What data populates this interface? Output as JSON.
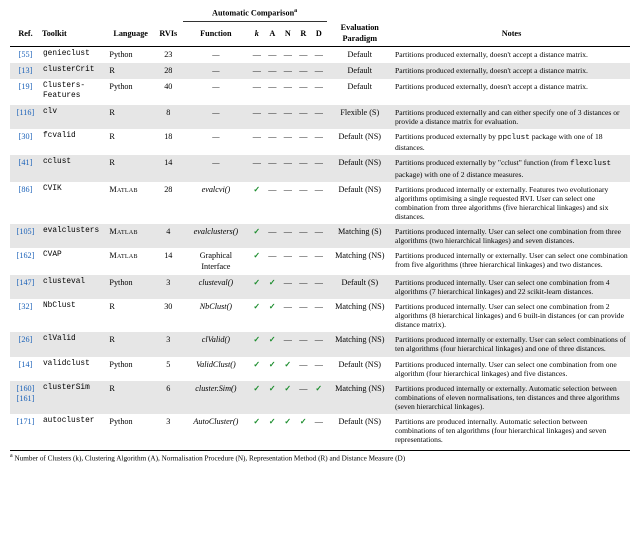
{
  "header": {
    "group_label": "Automatic Comparison",
    "group_sup": "a",
    "cols": {
      "ref": "Ref.",
      "toolkit": "Toolkit",
      "language": "Language",
      "rvis": "RVIs",
      "function": "Function",
      "k": "k",
      "a": "A",
      "n": "N",
      "r": "R",
      "d": "D",
      "ep": "Evaluation Paradigm",
      "notes": "Notes"
    }
  },
  "col_widths": {
    "ref": 28,
    "toolkit": 60,
    "language": 42,
    "rvis": 26,
    "function": 60,
    "k": 14,
    "a": 14,
    "n": 14,
    "r": 14,
    "d": 14,
    "ep": 60,
    "notes": 214
  },
  "checkmark": "✓",
  "dash": "—",
  "colors": {
    "ref": "#1a61b8",
    "check": "#1a8c2c",
    "alt_row": "#e6e6e6",
    "rule": "#000000",
    "bg": "#ffffff"
  },
  "fonts": {
    "body_pt": 8.2,
    "notes_pt": 7.6,
    "footnote_pt": 7.2,
    "mono": "Courier New",
    "serif": "Georgia"
  },
  "rows": [
    {
      "ref": "[55]",
      "toolkit": "genieclust",
      "language": "Python",
      "rvis": "23",
      "function": "—",
      "k": "—",
      "a": "—",
      "n": "—",
      "r": "—",
      "d": "—",
      "ep": "Default",
      "notes": "Partitions produced externally, doesn't accept a distance matrix."
    },
    {
      "ref": "[13]",
      "toolkit": "clusterCrit",
      "language": "R",
      "rvis": "28",
      "function": "—",
      "k": "—",
      "a": "—",
      "n": "—",
      "r": "—",
      "d": "—",
      "ep": "Default",
      "notes": "Partitions produced externally, doesn't accept a distance matrix."
    },
    {
      "ref": "[19]",
      "toolkit": "Clusters-Features",
      "language": "Python",
      "rvis": "40",
      "function": "—",
      "k": "—",
      "a": "—",
      "n": "—",
      "r": "—",
      "d": "—",
      "ep": "Default",
      "notes": "Partitions produced externally, doesn't accept a distance matrix."
    },
    {
      "ref": "[116]",
      "toolkit": "clv",
      "language": "R",
      "rvis": "8",
      "function": "—",
      "k": "—",
      "a": "—",
      "n": "—",
      "r": "—",
      "d": "—",
      "ep": "Flexible (S)",
      "notes": "Partitions produced externally and can either specify one of 3 distances or provide a distance matrix for evaluation."
    },
    {
      "ref": "[30]",
      "toolkit": "fcvalid",
      "language": "R",
      "rvis": "18",
      "function": "—",
      "k": "—",
      "a": "—",
      "n": "—",
      "r": "—",
      "d": "—",
      "ep": "Default (NS)",
      "notes": "Partitions produced externally by ppclust package with one of 18 distances.",
      "notes_tt": [
        "ppclust"
      ]
    },
    {
      "ref": "[41]",
      "toolkit": "cclust",
      "language": "R",
      "rvis": "14",
      "function": "—",
      "k": "—",
      "a": "—",
      "n": "—",
      "r": "—",
      "d": "—",
      "ep": "Default (NS)",
      "notes": "Partitions produced externally by \"cclust\" function (from flexclust package) with one of 2 distance measures.",
      "notes_tt": [
        "flexclust"
      ]
    },
    {
      "ref": "[86]",
      "toolkit": "CVIK",
      "language": "Matlab",
      "lang_sc": true,
      "rvis": "28",
      "function": "evalcvi()",
      "k": "✓",
      "a": "—",
      "n": "—",
      "r": "—",
      "d": "—",
      "ep": "Default (NS)",
      "notes": "Partitions produced internally or externally. Features two evolutionary algorithms optimising a single requested RVI. User can select one combination from three algorithms (five hierarchical linkages) and six distances."
    },
    {
      "ref": "[105]",
      "toolkit": "evalclusters",
      "language": "Matlab",
      "lang_sc": true,
      "rvis": "4",
      "function": "evalclusters()",
      "k": "✓",
      "a": "—",
      "n": "—",
      "r": "—",
      "d": "—",
      "ep": "Matching (S)",
      "notes": "Partitions produced internally. User can select one combination from three algorithms (two hierarchical linkages) and seven distances."
    },
    {
      "ref": "[162]",
      "toolkit": "CVAP",
      "language": "Matlab",
      "lang_sc": true,
      "rvis": "14",
      "function": "Graphical Interface",
      "func_plain": true,
      "k": "✓",
      "a": "—",
      "n": "—",
      "r": "—",
      "d": "—",
      "ep": "Matching (NS)",
      "notes": "Partitions produced internally or externally. User can select one combination from five algorithms (three hierarchical linkages) and two distances."
    },
    {
      "ref": "[147]",
      "toolkit": "clusteval",
      "language": "Python",
      "rvis": "3",
      "function": "clusteval()",
      "k": "✓",
      "a": "✓",
      "n": "—",
      "r": "—",
      "d": "—",
      "ep": "Default (S)",
      "notes": "Partitions produced internally. User can select one combination from 4 algorithms (7 hierarchical linkages) and 22 scikit-learn distances."
    },
    {
      "ref": "[32]",
      "toolkit": "NbClust",
      "language": "R",
      "rvis": "30",
      "function": "NbClust()",
      "k": "✓",
      "a": "✓",
      "n": "—",
      "r": "—",
      "d": "—",
      "ep": "Matching (NS)",
      "notes": "Partitions produced internally. User can select one combination from 2 algorithms (8 hierarchical linkages) and 6 built-in distances (or can provide distance matrix)."
    },
    {
      "ref": "[26]",
      "toolkit": "clValid",
      "language": "R",
      "rvis": "3",
      "function": "clValid()",
      "k": "✓",
      "a": "✓",
      "n": "—",
      "r": "—",
      "d": "—",
      "ep": "Matching (NS)",
      "notes": "Partitions produced internally or externally. User can select combinations of ten algorithms (four hierarchical linkages) and one of three distances."
    },
    {
      "ref": "[14]",
      "toolkit": "validclust",
      "language": "Python",
      "rvis": "5",
      "function": "ValidClust()",
      "k": "✓",
      "a": "✓",
      "n": "✓",
      "r": "—",
      "d": "—",
      "ep": "Default (NS)",
      "notes": "Partitions produced internally. User can select one combination from one algorithm (four hierarchical linkages) and five distances."
    },
    {
      "ref": "[160] [161]",
      "toolkit": "clusterSim",
      "language": "R",
      "rvis": "6",
      "function": "cluster.Sim()",
      "k": "✓",
      "a": "✓",
      "n": "✓",
      "r": "—",
      "d": "✓",
      "ep": "Matching (NS)",
      "notes": "Partitions produced internally or externally. Automatic selection between combinations of eleven normalisations, ten distances and three algorithms (seven hierarchical linkages)."
    },
    {
      "ref": "[171]",
      "toolkit": "autocluster",
      "language": "Python",
      "rvis": "3",
      "function": "AutoCluster()",
      "k": "✓",
      "a": "✓",
      "n": "✓",
      "r": "✓",
      "d": "—",
      "ep": "Default (NS)",
      "notes": "Partitions are produced internally. Automatic selection between combinations of ten algorithms (four hierarchical linkages) and seven representations."
    }
  ],
  "footnote": {
    "sup": "a",
    "text": "Number of Clusters (k), Clustering Algorithm (A), Normalisation Procedure (N), Representation Method (R) and Distance Measure (D)"
  }
}
